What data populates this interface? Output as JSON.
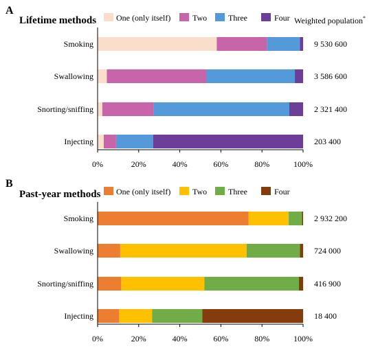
{
  "header_right": "Weighted population",
  "header_right_sup": "*",
  "chart_data": [
    {
      "type": "bar",
      "orientation": "horizontal",
      "stacked": "percent",
      "panel_letter": "A",
      "title": "Lifetime methods",
      "categories": [
        "Smoking",
        "Swallowing",
        "Snorting/sniffing",
        "Injecting"
      ],
      "series": [
        {
          "name": "One (only itself)",
          "color": "#FADDCB",
          "values": [
            58,
            4.5,
            2.3,
            3
          ]
        },
        {
          "name": "Two",
          "color": "#C764AA",
          "values": [
            24.5,
            48.5,
            25,
            6
          ]
        },
        {
          "name": "Three",
          "color": "#549ADB",
          "values": [
            16,
            43,
            66,
            18
          ]
        },
        {
          "name": "Four",
          "color": "#6C3E98",
          "values": [
            1.5,
            4,
            6.7,
            73
          ]
        }
      ],
      "population": [
        "9 530 600",
        "3 586 600",
        "2 321 400",
        "203 400"
      ],
      "xlim": [
        0,
        100
      ],
      "xticks": [
        "0%",
        "20%",
        "40%",
        "60%",
        "80%",
        "100%"
      ],
      "grid": false,
      "legend_position": "top"
    },
    {
      "type": "bar",
      "orientation": "horizontal",
      "stacked": "percent",
      "panel_letter": "B",
      "title": "Past-year methods",
      "categories": [
        "Smoking",
        "Swallowing",
        "Snorting/sniffing",
        "Injecting"
      ],
      "series": [
        {
          "name": "One (only itself)",
          "color": "#ED7D31",
          "values": [
            73.5,
            11,
            11.5,
            10.5
          ]
        },
        {
          "name": "Two",
          "color": "#FFC000",
          "values": [
            19.5,
            61.5,
            40.5,
            16
          ]
        },
        {
          "name": "Three",
          "color": "#70AD47",
          "values": [
            6.5,
            26,
            46,
            24.5
          ]
        },
        {
          "name": "Four",
          "color": "#843C0C",
          "values": [
            0.5,
            1.5,
            2,
            49
          ]
        }
      ],
      "population": [
        "2 932 200",
        "724 000",
        "416 900",
        "18 400"
      ],
      "xlim": [
        0,
        100
      ],
      "xticks": [
        "0%",
        "20%",
        "40%",
        "60%",
        "80%",
        "100%"
      ],
      "grid": false,
      "legend_position": "top"
    }
  ]
}
